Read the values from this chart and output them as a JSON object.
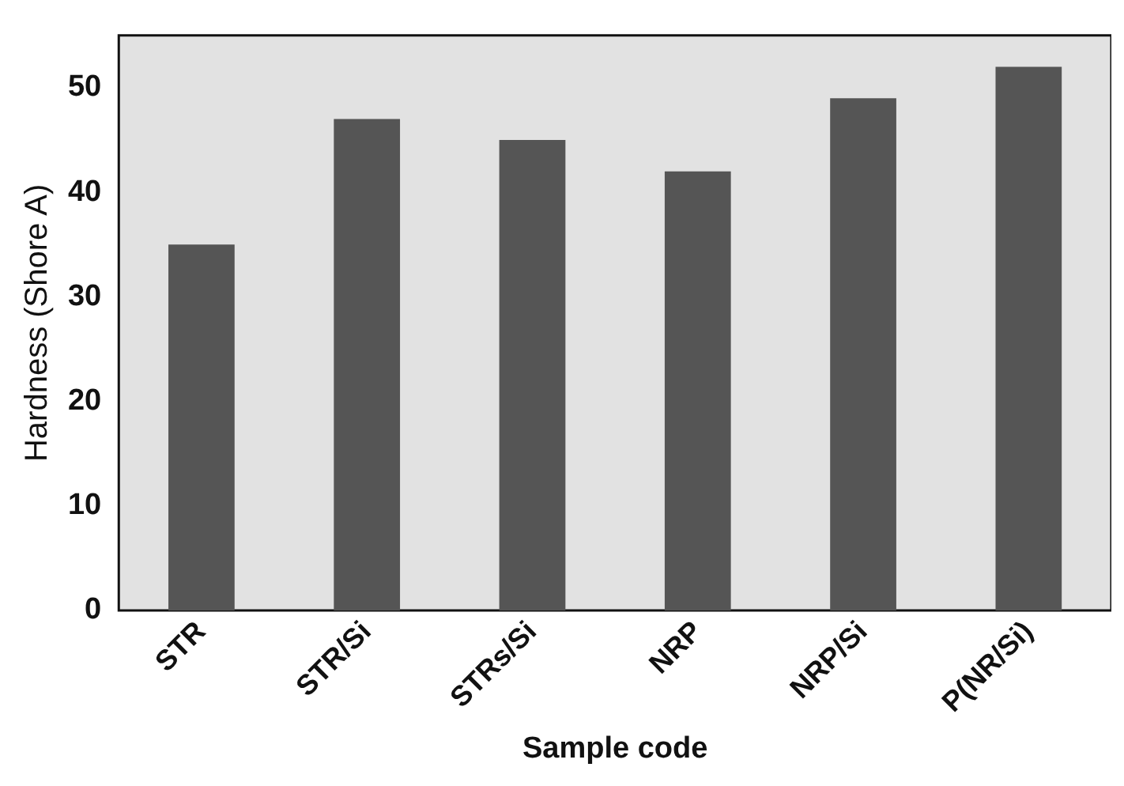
{
  "chart_data": {
    "type": "bar",
    "xlabel": "Sample code",
    "ylabel": "Hardness (Shore A)",
    "categories": [
      "STR",
      "STR/Si",
      "STRs/Si",
      "NRP",
      "NRP/Si",
      "P(NR/Si)"
    ],
    "values": [
      35,
      47,
      45,
      42,
      49,
      52
    ],
    "color": "#555555",
    "ylim": [
      0,
      55
    ],
    "yticks": [
      0,
      10,
      20,
      30,
      40,
      50
    ],
    "grid": false,
    "legend": false
  }
}
